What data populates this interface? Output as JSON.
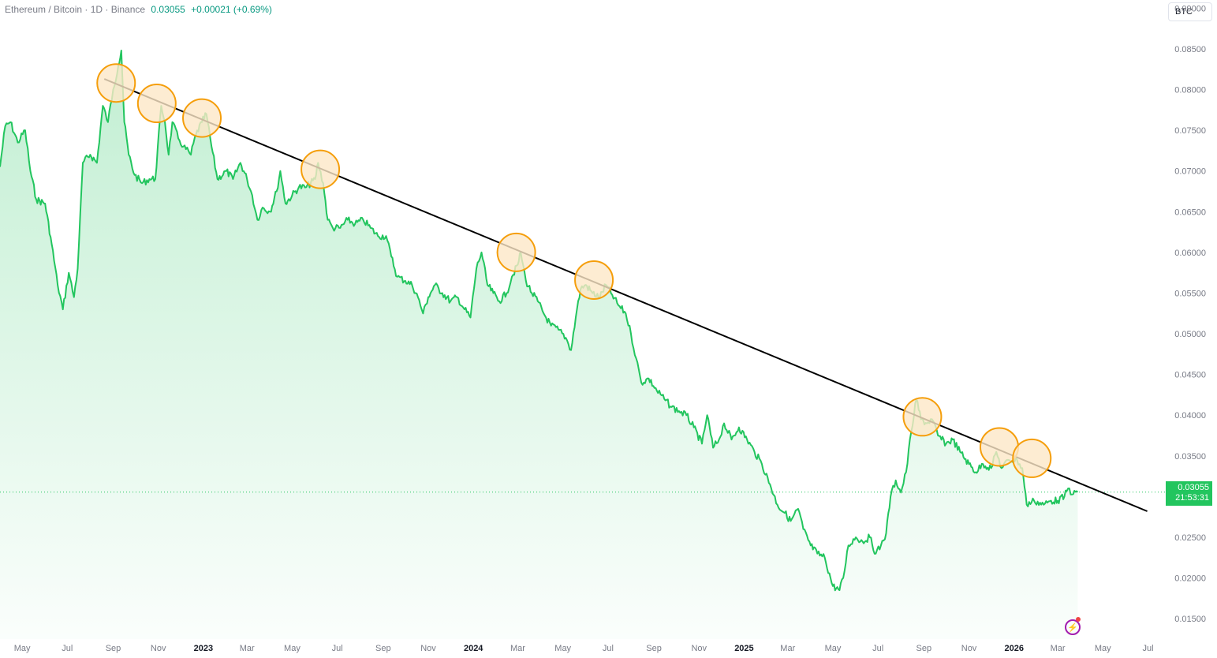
{
  "header": {
    "symbol": "Ethereum / Bitcoin · 1D · Binance",
    "price": "0.03055",
    "change": "+0.00021 (+0.69%)"
  },
  "currency_button": {
    "label": "BTC"
  },
  "last_price": {
    "value": "0.03055",
    "countdown": "21:53:31"
  },
  "colors": {
    "line": "#22c55e",
    "fill": "#22c55e",
    "trendline": "#000000",
    "highlight_stroke": "#f59e0b",
    "highlight_fill": "#fde7c7",
    "price_tag": "#22c55e"
  },
  "icons": {
    "bolt": "lightning-bolt-icon"
  },
  "chart_data": {
    "type": "area",
    "symbol": "ETH/BTC",
    "ylim": [
      0.0125,
      0.091
    ],
    "ytick_values": [
      0.015,
      0.02,
      0.025,
      0.03,
      0.035,
      0.04,
      0.045,
      0.05,
      0.055,
      0.06,
      0.065,
      0.07,
      0.075,
      0.08,
      0.085,
      0.09
    ],
    "ytick_labels": [
      "0.01500",
      "0.02000",
      "0.02500",
      "0.03000",
      "0.03500",
      "0.04000",
      "0.04500",
      "0.05000",
      "0.05500",
      "0.06000",
      "0.06500",
      "0.07000",
      "0.07500",
      "0.08000",
      "0.08500",
      "0.09000"
    ],
    "xlim": [
      "2022-04-01",
      "2026-07-25"
    ],
    "xticks": [
      {
        "date": "2022-05-01",
        "label": "May"
      },
      {
        "date": "2022-07-01",
        "label": "Jul"
      },
      {
        "date": "2022-09-01",
        "label": "Sep"
      },
      {
        "date": "2022-11-01",
        "label": "Nov"
      },
      {
        "date": "2023-01-01",
        "label": "2023"
      },
      {
        "date": "2023-03-01",
        "label": "Mar"
      },
      {
        "date": "2023-05-01",
        "label": "May"
      },
      {
        "date": "2023-07-01",
        "label": "Jul"
      },
      {
        "date": "2023-09-01",
        "label": "Sep"
      },
      {
        "date": "2023-11-01",
        "label": "Nov"
      },
      {
        "date": "2024-01-01",
        "label": "2024"
      },
      {
        "date": "2024-03-01",
        "label": "Mar"
      },
      {
        "date": "2024-05-01",
        "label": "May"
      },
      {
        "date": "2024-07-01",
        "label": "Jul"
      },
      {
        "date": "2024-09-01",
        "label": "Sep"
      },
      {
        "date": "2024-11-01",
        "label": "Nov"
      },
      {
        "date": "2025-01-01",
        "label": "2025"
      },
      {
        "date": "2025-03-01",
        "label": "Mar"
      },
      {
        "date": "2025-05-01",
        "label": "May"
      },
      {
        "date": "2025-07-01",
        "label": "Jul"
      },
      {
        "date": "2025-09-01",
        "label": "Sep"
      },
      {
        "date": "2025-11-01",
        "label": "Nov"
      },
      {
        "date": "2026-01-01",
        "label": "2026"
      },
      {
        "date": "2026-03-01",
        "label": "Mar"
      },
      {
        "date": "2026-05-01",
        "label": "May"
      },
      {
        "date": "2026-07-01",
        "label": "Jul"
      }
    ],
    "series": [
      {
        "points": [
          [
            "2022-04-01",
            0.0705
          ],
          [
            "2022-04-08",
            0.0755
          ],
          [
            "2022-04-15",
            0.076
          ],
          [
            "2022-04-25",
            0.0735
          ],
          [
            "2022-05-05",
            0.075
          ],
          [
            "2022-05-12",
            0.07
          ],
          [
            "2022-05-20",
            0.0665
          ],
          [
            "2022-06-01",
            0.066
          ],
          [
            "2022-06-10",
            0.061
          ],
          [
            "2022-06-18",
            0.056
          ],
          [
            "2022-06-25",
            0.053
          ],
          [
            "2022-07-03",
            0.0575
          ],
          [
            "2022-07-10",
            0.0545
          ],
          [
            "2022-07-15",
            0.058
          ],
          [
            "2022-07-22",
            0.071
          ],
          [
            "2022-08-01",
            0.072
          ],
          [
            "2022-08-10",
            0.071
          ],
          [
            "2022-08-18",
            0.078
          ],
          [
            "2022-08-25",
            0.076
          ],
          [
            "2022-09-01",
            0.08
          ],
          [
            "2022-09-08",
            0.083
          ],
          [
            "2022-09-12",
            0.0848
          ],
          [
            "2022-09-16",
            0.076
          ],
          [
            "2022-09-22",
            0.072
          ],
          [
            "2022-09-30",
            0.0695
          ],
          [
            "2022-10-10",
            0.0685
          ],
          [
            "2022-10-20",
            0.069
          ],
          [
            "2022-10-28",
            0.069
          ],
          [
            "2022-11-05",
            0.078
          ],
          [
            "2022-11-10",
            0.076
          ],
          [
            "2022-11-15",
            0.072
          ],
          [
            "2022-11-20",
            0.076
          ],
          [
            "2022-11-28",
            0.074
          ],
          [
            "2022-12-05",
            0.073
          ],
          [
            "2022-12-15",
            0.072
          ],
          [
            "2022-12-22",
            0.0745
          ],
          [
            "2022-12-30",
            0.076
          ],
          [
            "2023-01-05",
            0.077
          ],
          [
            "2023-01-12",
            0.073
          ],
          [
            "2023-01-20",
            0.069
          ],
          [
            "2023-02-01",
            0.07
          ],
          [
            "2023-02-10",
            0.069
          ],
          [
            "2023-02-20",
            0.071
          ],
          [
            "2023-03-01",
            0.069
          ],
          [
            "2023-03-08",
            0.067
          ],
          [
            "2023-03-15",
            0.064
          ],
          [
            "2023-03-22",
            0.0655
          ],
          [
            "2023-04-01",
            0.065
          ],
          [
            "2023-04-10",
            0.0675
          ],
          [
            "2023-04-15",
            0.07
          ],
          [
            "2023-04-22",
            0.066
          ],
          [
            "2023-05-01",
            0.067
          ],
          [
            "2023-05-10",
            0.068
          ],
          [
            "2023-05-20",
            0.068
          ],
          [
            "2023-06-01",
            0.069
          ],
          [
            "2023-06-05",
            0.071
          ],
          [
            "2023-06-12",
            0.0685
          ],
          [
            "2023-06-18",
            0.064
          ],
          [
            "2023-06-25",
            0.063
          ],
          [
            "2023-07-05",
            0.063
          ],
          [
            "2023-07-15",
            0.064
          ],
          [
            "2023-07-25",
            0.0635
          ],
          [
            "2023-08-05",
            0.064
          ],
          [
            "2023-08-15",
            0.063
          ],
          [
            "2023-08-25",
            0.062
          ],
          [
            "2023-09-05",
            0.062
          ],
          [
            "2023-09-12",
            0.0595
          ],
          [
            "2023-09-20",
            0.057
          ],
          [
            "2023-10-01",
            0.0565
          ],
          [
            "2023-10-10",
            0.056
          ],
          [
            "2023-10-18",
            0.0545
          ],
          [
            "2023-10-25",
            0.0525
          ],
          [
            "2023-11-01",
            0.0545
          ],
          [
            "2023-11-10",
            0.056
          ],
          [
            "2023-11-20",
            0.055
          ],
          [
            "2023-12-01",
            0.054
          ],
          [
            "2023-12-10",
            0.0545
          ],
          [
            "2023-12-20",
            0.053
          ],
          [
            "2023-12-28",
            0.052
          ],
          [
            "2024-01-05",
            0.058
          ],
          [
            "2024-01-12",
            0.06
          ],
          [
            "2024-01-20",
            0.056
          ],
          [
            "2024-01-28",
            0.055
          ],
          [
            "2024-02-05",
            0.054
          ],
          [
            "2024-02-15",
            0.055
          ],
          [
            "2024-02-22",
            0.057
          ],
          [
            "2024-03-01",
            0.0585
          ],
          [
            "2024-03-05",
            0.06
          ],
          [
            "2024-03-12",
            0.0565
          ],
          [
            "2024-03-20",
            0.055
          ],
          [
            "2024-03-28",
            0.054
          ],
          [
            "2024-04-05",
            0.0525
          ],
          [
            "2024-04-15",
            0.051
          ],
          [
            "2024-04-25",
            0.0505
          ],
          [
            "2024-05-05",
            0.0495
          ],
          [
            "2024-05-12",
            0.048
          ],
          [
            "2024-05-20",
            0.053
          ],
          [
            "2024-05-25",
            0.0555
          ],
          [
            "2024-06-01",
            0.056
          ],
          [
            "2024-06-10",
            0.055
          ],
          [
            "2024-06-20",
            0.0545
          ],
          [
            "2024-06-28",
            0.056
          ],
          [
            "2024-07-05",
            0.055
          ],
          [
            "2024-07-15",
            0.0535
          ],
          [
            "2024-07-25",
            0.0525
          ],
          [
            "2024-08-01",
            0.05
          ],
          [
            "2024-08-08",
            0.047
          ],
          [
            "2024-08-15",
            0.044
          ],
          [
            "2024-08-25",
            0.0445
          ],
          [
            "2024-09-05",
            0.043
          ],
          [
            "2024-09-15",
            0.042
          ],
          [
            "2024-09-25",
            0.041
          ],
          [
            "2024-10-05",
            0.0405
          ],
          [
            "2024-10-15",
            0.04
          ],
          [
            "2024-10-25",
            0.0385
          ],
          [
            "2024-11-05",
            0.0365
          ],
          [
            "2024-11-12",
            0.04
          ],
          [
            "2024-11-20",
            0.036
          ],
          [
            "2024-11-28",
            0.037
          ],
          [
            "2024-12-05",
            0.039
          ],
          [
            "2024-12-15",
            0.037
          ],
          [
            "2024-12-25",
            0.0385
          ],
          [
            "2025-01-05",
            0.037
          ],
          [
            "2025-01-15",
            0.0355
          ],
          [
            "2025-01-25",
            0.034
          ],
          [
            "2025-02-05",
            0.0315
          ],
          [
            "2025-02-15",
            0.029
          ],
          [
            "2025-02-25",
            0.028
          ],
          [
            "2025-03-05",
            0.027
          ],
          [
            "2025-03-15",
            0.0285
          ],
          [
            "2025-03-22",
            0.026
          ],
          [
            "2025-04-01",
            0.024
          ],
          [
            "2025-04-10",
            0.023
          ],
          [
            "2025-04-20",
            0.0225
          ],
          [
            "2025-05-01",
            0.019
          ],
          [
            "2025-05-10",
            0.0185
          ],
          [
            "2025-05-15",
            0.02
          ],
          [
            "2025-05-22",
            0.024
          ],
          [
            "2025-06-01",
            0.025
          ],
          [
            "2025-06-10",
            0.0245
          ],
          [
            "2025-06-20",
            0.025
          ],
          [
            "2025-06-28",
            0.023
          ],
          [
            "2025-07-05",
            0.024
          ],
          [
            "2025-07-12",
            0.0255
          ],
          [
            "2025-07-18",
            0.03
          ],
          [
            "2025-07-25",
            0.032
          ],
          [
            "2025-08-01",
            0.0305
          ],
          [
            "2025-08-08",
            0.033
          ],
          [
            "2025-08-15",
            0.038
          ],
          [
            "2025-08-22",
            0.042
          ],
          [
            "2025-08-28",
            0.0395
          ],
          [
            "2025-09-05",
            0.039
          ],
          [
            "2025-09-12",
            0.0395
          ],
          [
            "2025-09-20",
            0.0375
          ],
          [
            "2025-10-01",
            0.0365
          ],
          [
            "2025-10-10",
            0.037
          ],
          [
            "2025-10-20",
            0.0355
          ],
          [
            "2025-11-01",
            0.034
          ],
          [
            "2025-11-10",
            0.033
          ],
          [
            "2025-11-20",
            0.034
          ],
          [
            "2025-12-01",
            0.0335
          ],
          [
            "2025-12-08",
            0.0355
          ],
          [
            "2025-12-15",
            0.0335
          ],
          [
            "2025-12-25",
            0.0345
          ],
          [
            "2026-01-05",
            0.0345
          ],
          [
            "2026-01-12",
            0.0335
          ],
          [
            "2026-01-18",
            0.029
          ],
          [
            "2026-01-28",
            0.0295
          ],
          [
            "2026-02-10",
            0.029
          ],
          [
            "2026-02-20",
            0.0295
          ],
          [
            "2026-03-01",
            0.0295
          ],
          [
            "2026-03-10",
            0.03
          ],
          [
            "2026-03-15",
            0.031
          ],
          [
            "2026-03-22",
            0.0303
          ],
          [
            "2026-03-28",
            0.03055
          ]
        ]
      }
    ],
    "trendline": {
      "start": [
        "2022-08-20",
        0.0813
      ],
      "end": [
        "2026-06-30",
        0.0282
      ]
    },
    "highlighted_peaks": [
      [
        "2022-09-05",
        0.0808
      ],
      [
        "2022-10-30",
        0.0783
      ],
      [
        "2022-12-30",
        0.0765
      ],
      [
        "2023-06-08",
        0.0702
      ],
      [
        "2024-02-28",
        0.06
      ],
      [
        "2024-06-12",
        0.0566
      ],
      [
        "2025-08-30",
        0.0398
      ],
      [
        "2025-12-12",
        0.0361
      ],
      [
        "2026-01-25",
        0.0347
      ]
    ]
  }
}
